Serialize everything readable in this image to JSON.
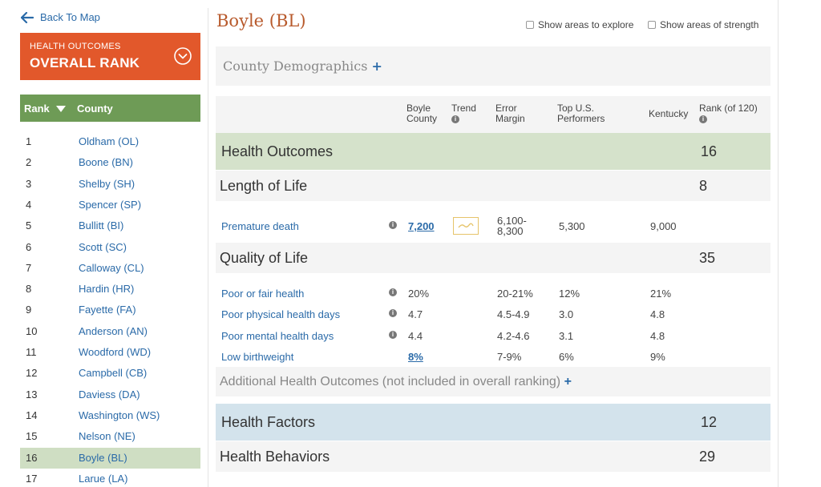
{
  "sidebar": {
    "back_label": "Back To Map",
    "rank_panel": {
      "subtitle": "HEALTH OUTCOMES",
      "title": "OVERALL RANK"
    },
    "list_header": {
      "rank": "Rank",
      "county": "County"
    },
    "counties": [
      {
        "rank": "1",
        "name": "Oldham (OL)"
      },
      {
        "rank": "2",
        "name": "Boone (BN)"
      },
      {
        "rank": "3",
        "name": "Shelby (SH)"
      },
      {
        "rank": "4",
        "name": "Spencer (SP)"
      },
      {
        "rank": "5",
        "name": "Bullitt (BI)"
      },
      {
        "rank": "6",
        "name": "Scott (SC)"
      },
      {
        "rank": "7",
        "name": "Calloway (CL)"
      },
      {
        "rank": "8",
        "name": "Hardin (HR)"
      },
      {
        "rank": "9",
        "name": "Fayette (FA)"
      },
      {
        "rank": "10",
        "name": "Anderson (AN)"
      },
      {
        "rank": "11",
        "name": "Woodford (WD)"
      },
      {
        "rank": "12",
        "name": "Campbell (CB)"
      },
      {
        "rank": "13",
        "name": "Daviess (DA)"
      },
      {
        "rank": "14",
        "name": "Washington (WS)"
      },
      {
        "rank": "15",
        "name": "Nelson (NE)"
      },
      {
        "rank": "16",
        "name": "Boyle (BL)"
      },
      {
        "rank": "17",
        "name": "Larue (LA)"
      }
    ],
    "active_rank": "16"
  },
  "header": {
    "title": "Boyle (BL)",
    "toggle_explore": "Show areas to explore",
    "toggle_strength": "Show areas of strength"
  },
  "demographics": {
    "label": "County Demographics",
    "plus": "+"
  },
  "table_header": {
    "county_l1": "Boyle",
    "county_l2": "County",
    "trend": "Trend",
    "error_l1": "Error",
    "error_l2": "Margin",
    "top_l1": "Top U.S.",
    "top_l2": "Performers",
    "state": "Kentucky",
    "rank": "Rank (of 120)",
    "info_glyph": "i"
  },
  "health_outcomes": {
    "label": "Health Outcomes",
    "rank": "16"
  },
  "length_of_life": {
    "label": "Length of Life",
    "rank": "8",
    "measures": [
      {
        "name": "Premature death",
        "county": "7,200",
        "error_l1": "6,100-",
        "error_l2": "8,300",
        "top": "5,300",
        "state": "9,000"
      }
    ]
  },
  "quality_of_life": {
    "label": "Quality of Life",
    "rank": "35",
    "measures": [
      {
        "name": "Poor or fair health",
        "county": "20%",
        "error": "20-21%",
        "top": "12%",
        "state": "21%"
      },
      {
        "name": "Poor physical health days",
        "county": "4.7",
        "error": "4.5-4.9",
        "top": "3.0",
        "state": "4.8"
      },
      {
        "name": "Poor mental health days",
        "county": "4.4",
        "error": "4.2-4.6",
        "top": "3.1",
        "state": "4.8"
      },
      {
        "name": "Low birthweight",
        "county": "8%",
        "error": "7-9%",
        "top": "6%",
        "state": "9%"
      }
    ]
  },
  "additional": {
    "label": "Additional Health Outcomes (not included in overall ranking)",
    "plus": "+"
  },
  "health_factors": {
    "label": "Health Factors",
    "rank": "12"
  },
  "health_behaviors": {
    "label": "Health Behaviors",
    "rank": "29"
  },
  "colors": {
    "accent_orange": "#e2582b",
    "sidebar_green": "#6e9b56",
    "active_row": "#cfdec3",
    "outcomes_band": "#d5e2cb",
    "factors_band": "#d3e3ec",
    "link_blue": "#2a6aa8",
    "title_brown": "#b85a2c"
  },
  "icons": {
    "back": "arrow-left-icon",
    "dropdown": "chevron-down-circle-icon",
    "sort": "triangle-down-icon",
    "info": "info-icon",
    "trend": "trend-line-icon"
  }
}
